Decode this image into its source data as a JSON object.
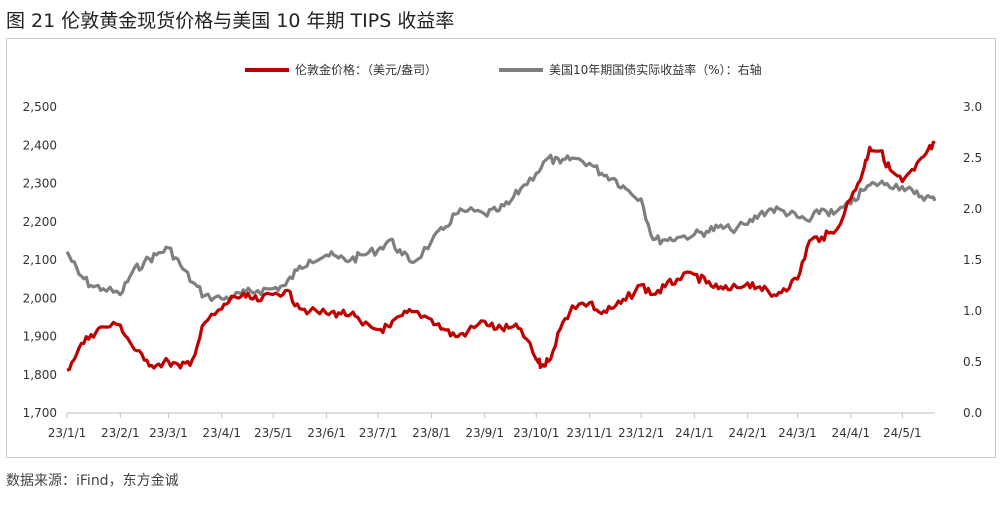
{
  "title": "图 21  伦敦黄金现货价格与美国 10 年期 TIPS 收益率",
  "source": "数据来源：iFind，东方金诚",
  "colors": {
    "gold": "#c00000",
    "tips": "#7f7f7f",
    "axis": "#bfbfbf",
    "text": "#333333"
  },
  "chart_data": {
    "type": "line",
    "legend_position": "top-center",
    "grid": false,
    "x_ticks": [
      "23/1/1",
      "23/2/1",
      "23/3/1",
      "23/4/1",
      "23/5/1",
      "23/6/1",
      "23/7/1",
      "23/8/1",
      "23/9/1",
      "23/10/1",
      "23/11/1",
      "23/12/1",
      "24/1/1",
      "24/2/1",
      "24/3/1",
      "24/4/1",
      "24/5/1"
    ],
    "y_left": {
      "min": 1700,
      "max": 2500,
      "ticks": [
        "1,700",
        "1,800",
        "1,900",
        "2,000",
        "2,100",
        "2,200",
        "2,300",
        "2,400",
        "2,500"
      ]
    },
    "y_right": {
      "min": 0.0,
      "max": 3.0,
      "ticks": [
        "0.0",
        "0.5",
        "1.0",
        "1.5",
        "2.0",
        "2.5",
        "3.0"
      ]
    },
    "series": [
      {
        "name": "伦敦金价格：（美元/盎司）",
        "axis": "left",
        "color": "#c00000",
        "points": [
          [
            "23/1/1",
            1812
          ],
          [
            "23/1/8",
            1870
          ],
          [
            "23/1/15",
            1905
          ],
          [
            "23/1/22",
            1925
          ],
          [
            "23/2/1",
            1930
          ],
          [
            "23/2/8",
            1875
          ],
          [
            "23/2/15",
            1838
          ],
          [
            "23/2/22",
            1825
          ],
          [
            "23/3/1",
            1835
          ],
          [
            "23/3/8",
            1818
          ],
          [
            "23/3/15",
            1840
          ],
          [
            "23/3/22",
            1935
          ],
          [
            "23/4/1",
            1972
          ],
          [
            "23/4/8",
            2005
          ],
          [
            "23/4/15",
            2003
          ],
          [
            "23/4/22",
            1993
          ],
          [
            "23/5/1",
            2010
          ],
          [
            "23/5/8",
            2020
          ],
          [
            "23/5/15",
            1985
          ],
          [
            "23/5/22",
            1965
          ],
          [
            "23/6/1",
            1960
          ],
          [
            "23/6/8",
            1962
          ],
          [
            "23/6/15",
            1958
          ],
          [
            "23/6/22",
            1930
          ],
          [
            "23/7/1",
            1918
          ],
          [
            "23/7/8",
            1925
          ],
          [
            "23/7/15",
            1955
          ],
          [
            "23/7/22",
            1965
          ],
          [
            "23/8/1",
            1945
          ],
          [
            "23/8/8",
            1920
          ],
          [
            "23/8/15",
            1900
          ],
          [
            "23/8/22",
            1912
          ],
          [
            "23/9/1",
            1940
          ],
          [
            "23/9/8",
            1920
          ],
          [
            "23/9/15",
            1922
          ],
          [
            "23/9/22",
            1920
          ],
          [
            "23/10/1",
            1840
          ],
          [
            "23/10/4",
            1822
          ],
          [
            "23/10/8",
            1835
          ],
          [
            "23/10/15",
            1920
          ],
          [
            "23/10/22",
            1980
          ],
          [
            "23/11/1",
            1988
          ],
          [
            "23/11/8",
            1960
          ],
          [
            "23/11/15",
            1975
          ],
          [
            "23/11/22",
            1995
          ],
          [
            "23/12/1",
            2035
          ],
          [
            "23/12/8",
            2010
          ],
          [
            "23/12/15",
            2030
          ],
          [
            "23/12/22",
            2050
          ],
          [
            "24/1/1",
            2062
          ],
          [
            "24/1/8",
            2040
          ],
          [
            "24/1/15",
            2025
          ],
          [
            "24/1/22",
            2022
          ],
          [
            "24/2/1",
            2040
          ],
          [
            "24/2/8",
            2030
          ],
          [
            "24/2/15",
            2005
          ],
          [
            "24/2/22",
            2025
          ],
          [
            "24/3/1",
            2050
          ],
          [
            "24/3/8",
            2150
          ],
          [
            "24/3/15",
            2160
          ],
          [
            "24/3/22",
            2170
          ],
          [
            "24/4/1",
            2260
          ],
          [
            "24/4/8",
            2330
          ],
          [
            "24/4/12",
            2395
          ],
          [
            "24/4/18",
            2385
          ],
          [
            "24/4/24",
            2335
          ],
          [
            "24/5/1",
            2305
          ],
          [
            "24/5/8",
            2335
          ],
          [
            "24/5/15",
            2380
          ],
          [
            "24/5/20",
            2405
          ]
        ]
      },
      {
        "name": "美国10年期国债实际收益率（%）：右轴",
        "axis": "right",
        "color": "#7f7f7f",
        "points": [
          [
            "23/1/1",
            1.58
          ],
          [
            "23/1/8",
            1.36
          ],
          [
            "23/1/15",
            1.25
          ],
          [
            "23/1/22",
            1.22
          ],
          [
            "23/2/1",
            1.16
          ],
          [
            "23/2/8",
            1.38
          ],
          [
            "23/2/15",
            1.48
          ],
          [
            "23/2/22",
            1.55
          ],
          [
            "23/3/1",
            1.62
          ],
          [
            "23/3/8",
            1.45
          ],
          [
            "23/3/15",
            1.28
          ],
          [
            "23/3/22",
            1.15
          ],
          [
            "23/4/1",
            1.12
          ],
          [
            "23/4/8",
            1.14
          ],
          [
            "23/4/15",
            1.18
          ],
          [
            "23/4/22",
            1.2
          ],
          [
            "23/5/1",
            1.22
          ],
          [
            "23/5/8",
            1.25
          ],
          [
            "23/5/15",
            1.4
          ],
          [
            "23/5/22",
            1.5
          ],
          [
            "23/6/1",
            1.55
          ],
          [
            "23/6/8",
            1.52
          ],
          [
            "23/6/15",
            1.5
          ],
          [
            "23/6/22",
            1.55
          ],
          [
            "23/7/1",
            1.6
          ],
          [
            "23/7/8",
            1.7
          ],
          [
            "23/7/15",
            1.55
          ],
          [
            "23/7/22",
            1.48
          ],
          [
            "23/8/1",
            1.68
          ],
          [
            "23/8/8",
            1.8
          ],
          [
            "23/8/15",
            1.95
          ],
          [
            "23/8/22",
            1.98
          ],
          [
            "23/9/1",
            1.95
          ],
          [
            "23/9/8",
            1.98
          ],
          [
            "23/9/15",
            2.05
          ],
          [
            "23/9/22",
            2.2
          ],
          [
            "23/10/1",
            2.35
          ],
          [
            "23/10/8",
            2.5
          ],
          [
            "23/10/15",
            2.45
          ],
          [
            "23/10/22",
            2.5
          ],
          [
            "23/11/1",
            2.45
          ],
          [
            "23/11/8",
            2.35
          ],
          [
            "23/11/15",
            2.3
          ],
          [
            "23/11/22",
            2.2
          ],
          [
            "23/12/1",
            2.1
          ],
          [
            "23/12/8",
            1.7
          ],
          [
            "23/12/15",
            1.7
          ],
          [
            "23/12/22",
            1.72
          ],
          [
            "24/1/1",
            1.75
          ],
          [
            "24/1/8",
            1.78
          ],
          [
            "24/1/15",
            1.82
          ],
          [
            "24/1/22",
            1.8
          ],
          [
            "24/2/1",
            1.85
          ],
          [
            "24/2/8",
            1.95
          ],
          [
            "24/2/15",
            2.0
          ],
          [
            "24/2/22",
            1.98
          ],
          [
            "24/3/1",
            1.92
          ],
          [
            "24/3/8",
            1.88
          ],
          [
            "24/3/15",
            2.0
          ],
          [
            "24/3/22",
            1.95
          ],
          [
            "24/4/1",
            2.05
          ],
          [
            "24/4/8",
            2.18
          ],
          [
            "24/4/15",
            2.25
          ],
          [
            "24/4/22",
            2.25
          ],
          [
            "24/5/1",
            2.22
          ],
          [
            "24/5/8",
            2.15
          ],
          [
            "24/5/15",
            2.12
          ],
          [
            "24/5/20",
            2.08
          ]
        ]
      }
    ]
  }
}
